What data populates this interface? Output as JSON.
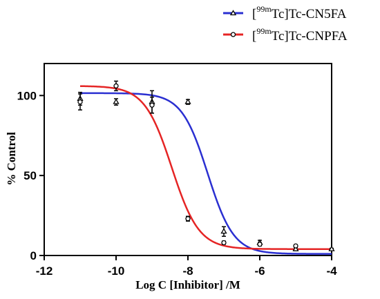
{
  "chart_data": {
    "type": "scatter",
    "xlabel": "Log C [Inhibitor] /M",
    "ylabel": "% Control",
    "xlim": [
      -12,
      -4
    ],
    "ylim": [
      0,
      120
    ],
    "xticks": [
      "-12",
      "-10",
      "-8",
      "-6",
      "-4"
    ],
    "xtick_values": [
      -12,
      -10,
      -8,
      -6,
      -4
    ],
    "yticks": [
      "0",
      "50",
      "100"
    ],
    "ytick_values": [
      0,
      50,
      100
    ],
    "grid": false,
    "legend_position": "top-right",
    "series": [
      {
        "name_prefix": "[",
        "name_sup": "99m",
        "name_suffix": "Tc]Tc-CN5FA",
        "color": "#2a2fd1",
        "marker": "triangle",
        "points": [
          {
            "x": -11,
            "y": 98,
            "err": 4
          },
          {
            "x": -10,
            "y": 96,
            "err": 2
          },
          {
            "x": -9,
            "y": 96,
            "err": 7
          },
          {
            "x": -8,
            "y": 96,
            "err": 1.5
          },
          {
            "x": -7,
            "y": 15,
            "err": 3
          },
          {
            "x": -6,
            "y": 8,
            "err": 1.5
          },
          {
            "x": -5,
            "y": 4,
            "err": 1
          },
          {
            "x": -4,
            "y": 4,
            "err": 0.5
          }
        ],
        "fit": {
          "top": 101.5,
          "bottom": 1,
          "logIC50": -7.45,
          "hill": 1.2
        }
      },
      {
        "name_prefix": "[",
        "name_sup": "99m",
        "name_suffix": "Tc]Tc-CNPFA",
        "color": "#e52424",
        "marker": "circle",
        "points": [
          {
            "x": -11,
            "y": 96,
            "err": 5
          },
          {
            "x": -10,
            "y": 106,
            "err": 3
          },
          {
            "x": -9,
            "y": 94,
            "err": 5
          },
          {
            "x": -8,
            "y": 23,
            "err": 1.5
          },
          {
            "x": -7,
            "y": 8,
            "err": 1
          },
          {
            "x": -6,
            "y": 7,
            "err": 1
          },
          {
            "x": -5,
            "y": 6,
            "err": 0.5
          }
        ],
        "fit": {
          "top": 106,
          "bottom": 4,
          "logIC50": -8.45,
          "hill": 1.15
        }
      }
    ]
  }
}
